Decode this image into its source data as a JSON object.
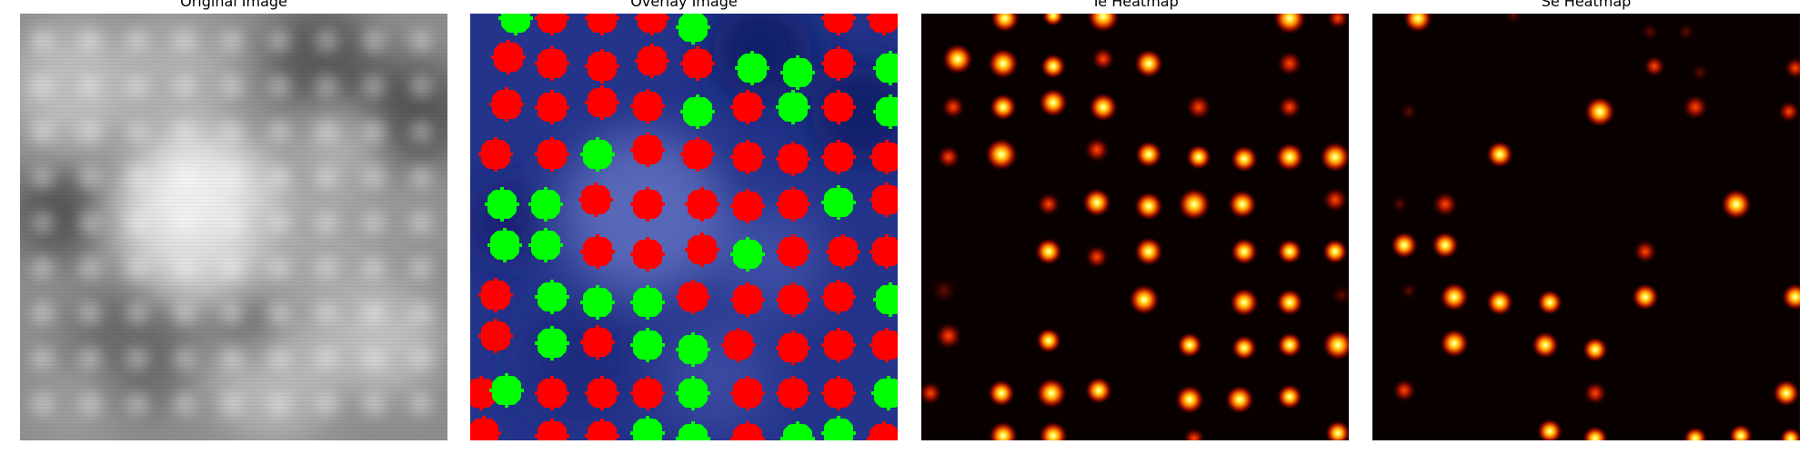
{
  "panels": [
    {
      "title": "Original Image"
    },
    {
      "title": "Overlay Image"
    },
    {
      "title": "Te Heatmap"
    },
    {
      "title": "Se Heatmap"
    }
  ],
  "colors": {
    "overlay_red": "#ff0000",
    "overlay_green": "#00ff00",
    "heatmap_bg": "#090000",
    "overlay_bg": "#1f2f86"
  }
}
